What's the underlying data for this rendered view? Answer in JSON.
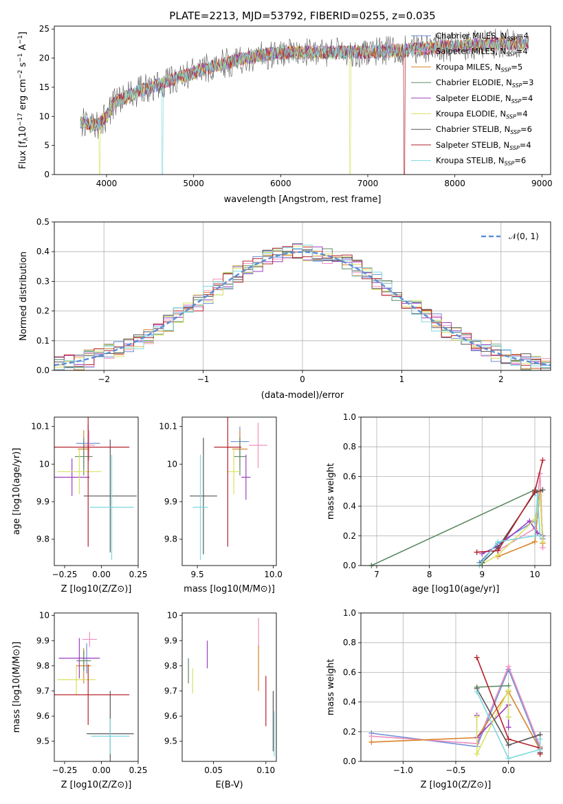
{
  "figure": {
    "title": "PLATE=2213, MJD=53792, FIBERID=0255, z=0.035"
  },
  "legend_entries": [
    {
      "label": "Chabrier MILES, N",
      "sub": "SSP",
      "suffix": "=4",
      "color": "#6d8ed6"
    },
    {
      "label": "Salpeter MILES, N",
      "sub": "SSP",
      "suffix": "=4",
      "color": "#ef8fbf"
    },
    {
      "label": "Kroupa MILES, N",
      "sub": "SSP",
      "suffix": "=5",
      "color": "#d9822b"
    },
    {
      "label": "Chabrier ELODIE, N",
      "sub": "SSP",
      "suffix": "=3",
      "color": "#5b8a63"
    },
    {
      "label": "Salpeter ELODIE, N",
      "sub": "SSP",
      "suffix": "=4",
      "color": "#9a3fbe"
    },
    {
      "label": "Kroupa ELODIE, N",
      "sub": "SSP",
      "suffix": "=4",
      "color": "#d9e160"
    },
    {
      "label": "Chabrier STELIB, N",
      "sub": "SSP",
      "suffix": "=6",
      "color": "#555555"
    },
    {
      "label": "Salpeter STELIB, N",
      "sub": "SSP",
      "suffix": "=4",
      "color": "#b5202a"
    },
    {
      "label": "Kroupa STELIB, N",
      "sub": "SSP",
      "suffix": "=6",
      "color": "#7fd7de"
    }
  ],
  "chart_data": [
    {
      "id": "spectrum",
      "type": "line",
      "xlabel": "wavelength [Angstrom, rest frame]",
      "ylabel": "Flux [f_λ 10^-17 erg cm^-2 s^-1 A^-1]",
      "xlim": [
        3400,
        9100
      ],
      "ylim": [
        0,
        25.5
      ],
      "xticks": [
        4000,
        5000,
        6000,
        7000,
        8000,
        9000
      ],
      "yticks": [
        0,
        5,
        10,
        15,
        20,
        25
      ],
      "x_range": [
        3700,
        8850
      ],
      "continuum": [
        [
          3700,
          9
        ],
        [
          3900,
          8.5
        ],
        [
          4000,
          10
        ],
        [
          4100,
          12.5
        ],
        [
          4400,
          14.5
        ],
        [
          4800,
          16.5
        ],
        [
          5200,
          18.5
        ],
        [
          5600,
          20
        ],
        [
          6000,
          21
        ],
        [
          6500,
          21
        ],
        [
          7000,
          21
        ],
        [
          7500,
          21.5
        ],
        [
          8000,
          22
        ],
        [
          8500,
          22.5
        ],
        [
          8850,
          22.5
        ]
      ],
      "dips": [
        {
          "x": 4640,
          "series": "Kroupa STELIB"
        },
        {
          "x": 6800,
          "series": "Kroupa ELODIE"
        },
        {
          "x": 7420,
          "series": "Salpeter STELIB"
        },
        {
          "x": 3920,
          "series": "Kroupa ELODIE"
        }
      ]
    },
    {
      "id": "residuals",
      "type": "step",
      "xlabel": "(data-model)/error",
      "ylabel": "Normed distribution",
      "xlim": [
        -2.5,
        2.5
      ],
      "ylim": [
        0,
        0.5
      ],
      "xticks": [
        -2,
        -1,
        0,
        1,
        2
      ],
      "xtick_labels": [
        "−2",
        "−1",
        "0",
        "1",
        "2"
      ],
      "yticks": [
        0,
        0.1,
        0.2,
        0.3,
        0.4,
        0.5
      ],
      "ytick_labels": [
        "0.0",
        "0.1",
        "0.2",
        "0.3",
        "0.4",
        "0.5"
      ],
      "legend_label": "𝒩(0, 1)",
      "reference_color": "#5b8fd6",
      "grid": true
    },
    {
      "id": "age-vs-Z",
      "type": "errorbar",
      "xlabel": "Z [log10(Z/Z⊙)]",
      "ylabel": "age [log10(age/yr)]",
      "xlim": [
        -0.32,
        0.25
      ],
      "ylim": [
        9.73,
        10.125
      ],
      "xticks": [
        -0.25,
        0.0,
        0.25
      ],
      "xtick_labels": [
        "−0.25",
        "0.00",
        "0.25"
      ],
      "yticks": [
        9.8,
        9.9,
        10.0,
        10.1
      ],
      "points": [
        {
          "series": "Chabrier MILES",
          "x": -0.09,
          "xerr": 0.08,
          "y": 10.055,
          "yerr": 0.05
        },
        {
          "series": "Salpeter MILES",
          "x": -0.085,
          "xerr": 0.04,
          "y": 10.05,
          "yerr": 0.04
        },
        {
          "series": "Kroupa MILES",
          "x": -0.12,
          "xerr": 0.04,
          "y": 10.04,
          "yerr": 0.05
        },
        {
          "series": "Chabrier ELODIE",
          "x": -0.12,
          "xerr": 0.06,
          "y": 10.02,
          "yerr": 0.05
        },
        {
          "series": "Salpeter ELODIE",
          "x": -0.2,
          "xerr": 0.12,
          "y": 9.965,
          "yerr": 0.05
        },
        {
          "series": "Kroupa ELODIE",
          "x": -0.15,
          "xerr": 0.15,
          "y": 9.98,
          "yerr": 0.06
        },
        {
          "series": "Chabrier STELIB",
          "x": 0.06,
          "xerr": 0.18,
          "y": 9.915,
          "yerr": 0.15
        },
        {
          "series": "Salpeter STELIB",
          "x": -0.09,
          "xerr": 0.28,
          "y": 10.045,
          "yerr": 0.265
        },
        {
          "series": "Kroupa STELIB",
          "x": 0.07,
          "xerr": 0.15,
          "y": 9.885,
          "yerr": 0.14
        }
      ]
    },
    {
      "id": "age-vs-mass",
      "type": "errorbar",
      "xlabel": "mass [log10(M/M⊙)]",
      "ylabel": "",
      "xlim": [
        9.4,
        10.02
      ],
      "ylim": [
        9.73,
        10.125
      ],
      "xticks": [
        9.5,
        10.0
      ],
      "xtick_labels": [
        "9.5",
        "10.0"
      ],
      "yticks": [
        9.8,
        9.9,
        10.0,
        10.1
      ],
      "points": [
        {
          "series": "Chabrier MILES",
          "x": 9.78,
          "xerr": 0.06,
          "y": 10.06,
          "yerr": 0.04
        },
        {
          "series": "Salpeter MILES",
          "x": 9.9,
          "xerr": 0.06,
          "y": 10.05,
          "yerr": 0.06
        },
        {
          "series": "Kroupa MILES",
          "x": 9.78,
          "xerr": 0.05,
          "y": 10.04,
          "yerr": 0.05
        },
        {
          "series": "Chabrier ELODIE",
          "x": 9.78,
          "xerr": 0.04,
          "y": 10.02,
          "yerr": 0.05
        },
        {
          "series": "Salpeter ELODIE",
          "x": 9.82,
          "xerr": 0.03,
          "y": 9.965,
          "yerr": 0.06
        },
        {
          "series": "Kroupa ELODIE",
          "x": 9.74,
          "xerr": 0.04,
          "y": 9.98,
          "yerr": 0.06
        },
        {
          "series": "Chabrier STELIB",
          "x": 9.54,
          "xerr": 0.09,
          "y": 9.915,
          "yerr": 0.155
        },
        {
          "series": "Salpeter STELIB",
          "x": 9.7,
          "xerr": 0.09,
          "y": 10.045,
          "yerr": 0.265
        },
        {
          "series": "Kroupa STELIB",
          "x": 9.52,
          "xerr": 0.05,
          "y": 9.885,
          "yerr": 0.14
        }
      ]
    },
    {
      "id": "massweight-vs-age",
      "type": "line",
      "xlabel": "age [log10(age/yr)]",
      "ylabel": "mass weight",
      "xlim": [
        6.7,
        10.3
      ],
      "ylim": [
        0,
        1
      ],
      "xticks": [
        7,
        8,
        9,
        10
      ],
      "yticks": [
        0,
        0.2,
        0.4,
        0.6,
        0.8,
        1.0
      ],
      "ytick_labels": [
        "0.0",
        "0.2",
        "0.4",
        "0.6",
        "0.8",
        "1.0"
      ],
      "grid": true,
      "series": [
        {
          "name": "Chabrier ELODIE",
          "points": [
            [
              6.9,
              0.0
            ],
            [
              10.0,
              0.51
            ],
            [
              10.1,
              0.5
            ],
            [
              10.15,
              0.18
            ]
          ]
        },
        {
          "name": "Chabrier MILES",
          "points": [
            [
              8.95,
              0.02
            ],
            [
              9.3,
              0.15
            ],
            [
              10.0,
              0.3
            ],
            [
              10.1,
              0.5
            ],
            [
              10.15,
              0.18
            ]
          ]
        },
        {
          "name": "Salpeter MILES",
          "points": [
            [
              9.3,
              0.1
            ],
            [
              10.0,
              0.25
            ],
            [
              10.1,
              0.62
            ],
            [
              10.15,
              0.12
            ]
          ]
        },
        {
          "name": "Kroupa MILES",
          "points": [
            [
              9.3,
              0.06
            ],
            [
              10.0,
              0.16
            ],
            [
              10.1,
              0.5
            ],
            [
              10.15,
              0.15
            ]
          ]
        },
        {
          "name": "Salpeter ELODIE",
          "points": [
            [
              9.0,
              0.08
            ],
            [
              9.3,
              0.13
            ],
            [
              9.9,
              0.3
            ],
            [
              10.05,
              0.22
            ],
            [
              10.15,
              0.2
            ]
          ]
        },
        {
          "name": "Kroupa ELODIE",
          "points": [
            [
              8.95,
              0.0
            ],
            [
              9.3,
              0.07
            ],
            [
              10.0,
              0.31
            ],
            [
              10.1,
              0.47
            ],
            [
              10.15,
              0.16
            ]
          ]
        },
        {
          "name": "Chabrier STELIB",
          "points": [
            [
              9.0,
              0.02
            ],
            [
              9.3,
              0.12
            ],
            [
              10.0,
              0.49
            ],
            [
              10.15,
              0.51
            ]
          ]
        },
        {
          "name": "Salpeter STELIB",
          "points": [
            [
              8.9,
              0.09
            ],
            [
              9.3,
              0.1
            ],
            [
              10.0,
              0.5
            ],
            [
              10.15,
              0.71
            ]
          ]
        },
        {
          "name": "Kroupa STELIB",
          "points": [
            [
              8.95,
              0.0
            ],
            [
              9.3,
              0.16
            ],
            [
              10.0,
              0.2
            ],
            [
              10.05,
              0.47
            ],
            [
              10.1,
              0.2
            ]
          ]
        }
      ]
    },
    {
      "id": "mass-vs-Z",
      "type": "errorbar",
      "xlabel": "Z [log10(Z/Z⊙)]",
      "ylabel": "mass [log10(M/M⊙)]",
      "xlim": [
        -0.32,
        0.25
      ],
      "ylim": [
        9.42,
        10.01
      ],
      "xticks": [
        -0.25,
        0.0,
        0.25
      ],
      "xtick_labels": [
        "−0.25",
        "0.00",
        "0.25"
      ],
      "yticks": [
        9.5,
        9.6,
        9.7,
        9.8,
        9.9,
        10.0
      ],
      "points": [
        {
          "series": "Chabrier MILES",
          "x": -0.1,
          "xerr": 0.07,
          "y": 9.83,
          "yerr": 0.06
        },
        {
          "series": "Salpeter MILES",
          "x": -0.08,
          "xerr": 0.05,
          "y": 9.905,
          "yerr": 0.03
        },
        {
          "series": "Kroupa MILES",
          "x": -0.12,
          "xerr": 0.05,
          "y": 9.8,
          "yerr": 0.07
        },
        {
          "series": "Chabrier ELODIE",
          "x": -0.12,
          "xerr": 0.05,
          "y": 9.82,
          "yerr": 0.04
        },
        {
          "series": "Salpeter ELODIE",
          "x": -0.15,
          "xerr": 0.14,
          "y": 9.83,
          "yerr": 0.08
        },
        {
          "series": "Kroupa ELODIE",
          "x": -0.17,
          "xerr": 0.13,
          "y": 9.745,
          "yerr": 0.06
        },
        {
          "series": "Chabrier STELIB",
          "x": 0.06,
          "xerr": 0.16,
          "y": 9.53,
          "yerr": 0.17
        },
        {
          "series": "Salpeter STELIB",
          "x": -0.09,
          "xerr": 0.28,
          "y": 9.685,
          "yerr": 0.12
        },
        {
          "series": "Kroupa STELIB",
          "x": 0.06,
          "xerr": 0.13,
          "y": 9.52,
          "yerr": 0.07
        }
      ]
    },
    {
      "id": "mass-vs-ebv",
      "type": "errorbar",
      "xlabel": "E(B-V)",
      "ylabel": "",
      "xlim": [
        0.02,
        0.11
      ],
      "ylim": [
        9.42,
        10.01
      ],
      "xticks": [
        0.05,
        0.1
      ],
      "xtick_labels": [
        "0.05",
        "0.10"
      ],
      "yticks": [
        9.5,
        9.6,
        9.7,
        9.8,
        9.9,
        10.0
      ],
      "points": [
        {
          "series": "Chabrier ELODIE",
          "x": 0.026,
          "xerr": 0,
          "y": 9.78,
          "yerr": 0.05
        },
        {
          "series": "Kroupa ELODIE",
          "x": 0.03,
          "xerr": 0,
          "y": 9.74,
          "yerr": 0.05
        },
        {
          "series": "Salpeter ELODIE",
          "x": 0.044,
          "xerr": 0,
          "y": 9.845,
          "yerr": 0.055
        },
        {
          "series": "Salpeter MILES",
          "x": 0.093,
          "xerr": 0,
          "y": 9.93,
          "yerr": 0.06
        },
        {
          "series": "Kroupa MILES",
          "x": 0.093,
          "xerr": 0,
          "y": 9.79,
          "yerr": 0.09
        },
        {
          "series": "Salpeter STELIB",
          "x": 0.1,
          "xerr": 0,
          "y": 9.66,
          "yerr": 0.1
        },
        {
          "series": "Chabrier STELIB",
          "x": 0.107,
          "xerr": 0,
          "y": 9.58,
          "yerr": 0.12
        },
        {
          "series": "Kroupa STELIB",
          "x": 0.108,
          "xerr": 0,
          "y": 9.53,
          "yerr": 0.09
        }
      ]
    },
    {
      "id": "massweight-vs-Z",
      "type": "line",
      "xlabel": "Z [log10(Z/Z⊙)]",
      "ylabel": "mass weight",
      "xlim": [
        -1.4,
        0.4
      ],
      "ylim": [
        0,
        1
      ],
      "xticks": [
        -1.0,
        -0.5,
        0.0
      ],
      "xtick_labels": [
        "−1.0",
        "−0.5",
        "0.0"
      ],
      "yticks": [
        0,
        0.2,
        0.4,
        0.6,
        0.8,
        1.0
      ],
      "ytick_labels": [
        "0.0",
        "0.2",
        "0.4",
        "0.6",
        "0.8",
        "1.0"
      ],
      "grid": true,
      "series": [
        {
          "name": "Chabrier MILES",
          "points": [
            [
              -1.3,
              0.19
            ],
            [
              -0.3,
              0.1
            ],
            [
              0.0,
              0.62
            ],
            [
              0.3,
              0.08
            ]
          ]
        },
        {
          "name": "Salpeter MILES",
          "points": [
            [
              -1.3,
              0.17
            ],
            [
              -0.3,
              0.12
            ],
            [
              0.0,
              0.64
            ],
            [
              0.3,
              0.1
            ]
          ]
        },
        {
          "name": "Kroupa MILES",
          "points": [
            [
              -1.3,
              0.13
            ],
            [
              -0.3,
              0.16
            ],
            [
              0.0,
              0.47
            ],
            [
              0.3,
              0.08
            ]
          ]
        },
        {
          "name": "Chabrier ELODIE",
          "points": [
            [
              -0.3,
              0.5
            ],
            [
              0.0,
              0.51
            ],
            [
              0.0,
              0.3
            ]
          ]
        },
        {
          "name": "Salpeter ELODIE",
          "points": [
            [
              -0.3,
              0.31
            ],
            [
              -0.3,
              0.16
            ],
            [
              0.0,
              0.38
            ],
            [
              0.0,
              0.23
            ]
          ]
        },
        {
          "name": "Kroupa ELODIE",
          "points": [
            [
              -0.3,
              0.3
            ],
            [
              -0.3,
              0.05
            ],
            [
              0.0,
              0.48
            ],
            [
              0.0,
              0.3
            ]
          ]
        },
        {
          "name": "Chabrier STELIB",
          "points": [
            [
              -0.3,
              0.49
            ],
            [
              0.0,
              0.11
            ],
            [
              0.3,
              0.18
            ],
            [
              0.3,
              0.06
            ]
          ]
        },
        {
          "name": "Salpeter STELIB",
          "points": [
            [
              -0.3,
              0.7
            ],
            [
              0.0,
              0.15
            ],
            [
              0.3,
              0.09
            ],
            [
              0.3,
              0.05
            ]
          ]
        },
        {
          "name": "Kroupa STELIB",
          "points": [
            [
              -0.3,
              0.47
            ],
            [
              0.0,
              0.02
            ],
            [
              0.3,
              0.08
            ],
            [
              0.3,
              0.15
            ]
          ]
        }
      ]
    }
  ]
}
